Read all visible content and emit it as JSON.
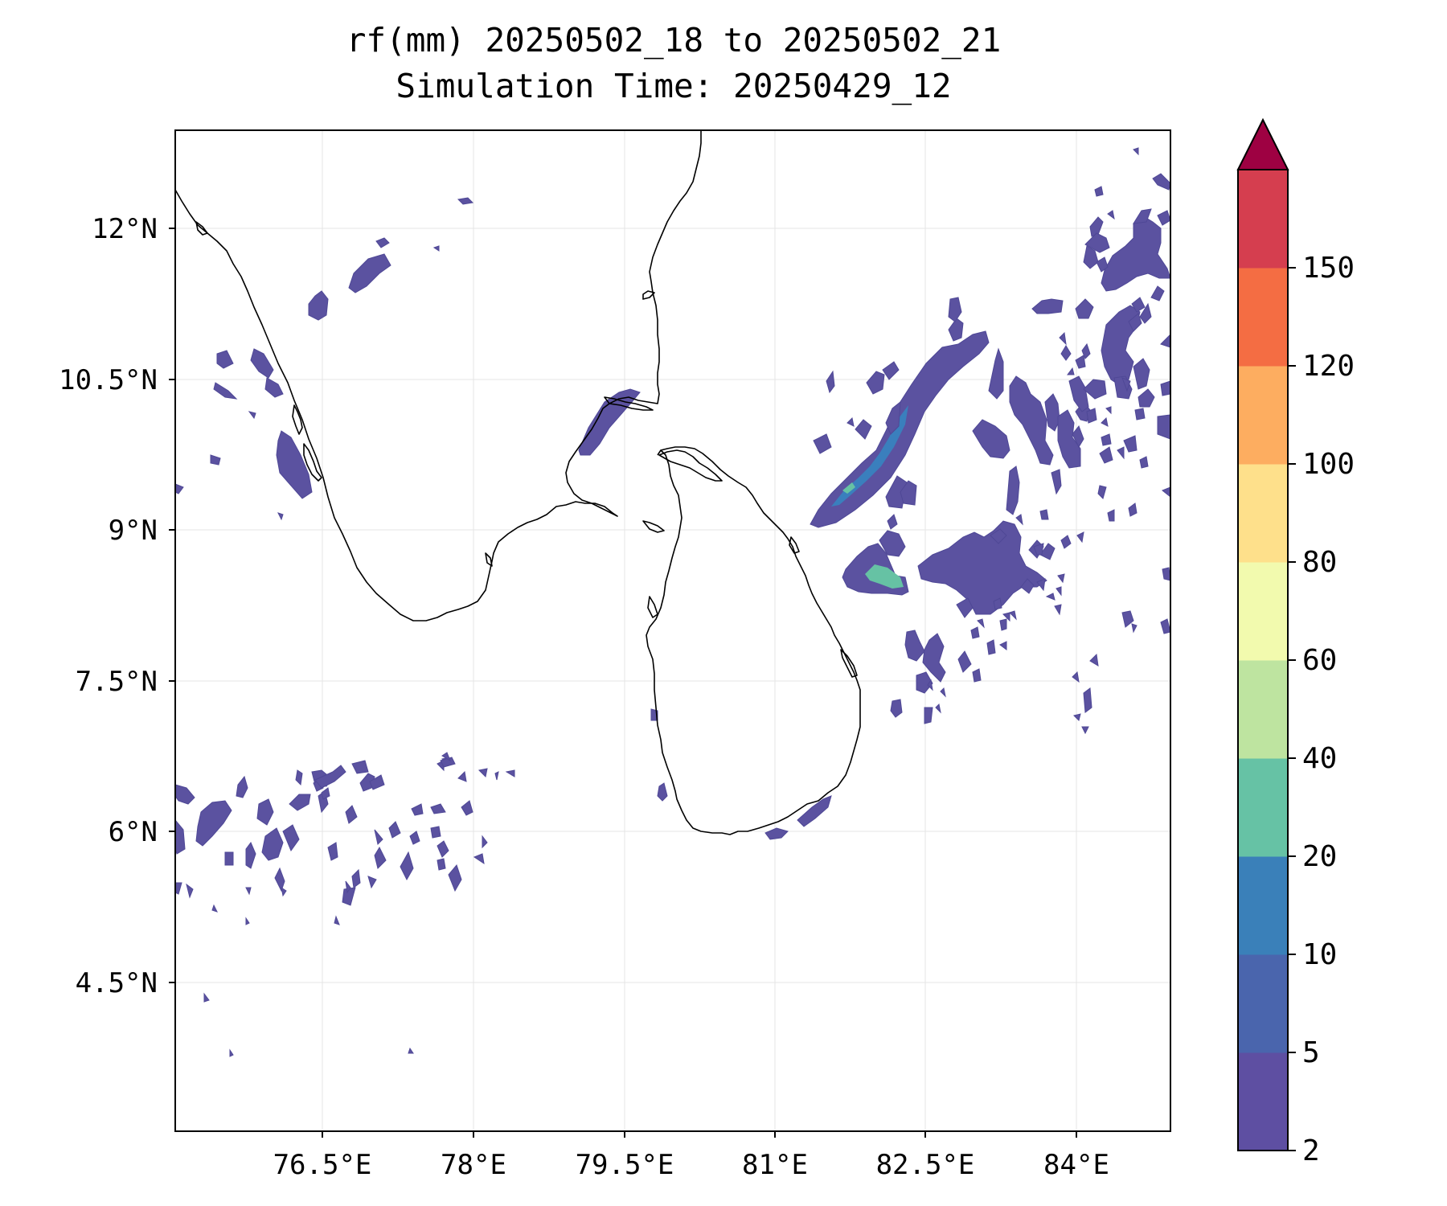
{
  "title": {
    "line1": "rf(mm) 20250502_18 to 20250502_21",
    "line2": "Simulation Time: 20250429_12"
  },
  "axes": {
    "xticks": [
      "76.5°E",
      "78°E",
      "79.5°E",
      "81°E",
      "82.5°E",
      "84°E"
    ],
    "yticks": [
      "12°N",
      "10.5°N",
      "9°N",
      "7.5°N",
      "6°N",
      "4.5°N"
    ]
  },
  "colorbar": {
    "levels": [
      "2",
      "5",
      "10",
      "20",
      "40",
      "60",
      "80",
      "100",
      "120",
      "150"
    ],
    "colors": [
      "#5e4fa2",
      "#4a65ad",
      "#3a80b9",
      "#66c2a5",
      "#bee4a0",
      "#f2faae",
      "#fee08b",
      "#fdad60",
      "#f46d43",
      "#d53e4f"
    ],
    "extend_color": "#9e0142"
  },
  "chart_data": {
    "type": "heatmap",
    "title": "rf(mm) 20250502_18 to 20250502_21",
    "subtitle": "Simulation Time: 20250429_12",
    "xlim": [
      75.0,
      84.9
    ],
    "ylim": [
      3.0,
      12.95
    ],
    "grid": true,
    "legend": "right colorbar, extend max",
    "units": "mm"
  }
}
